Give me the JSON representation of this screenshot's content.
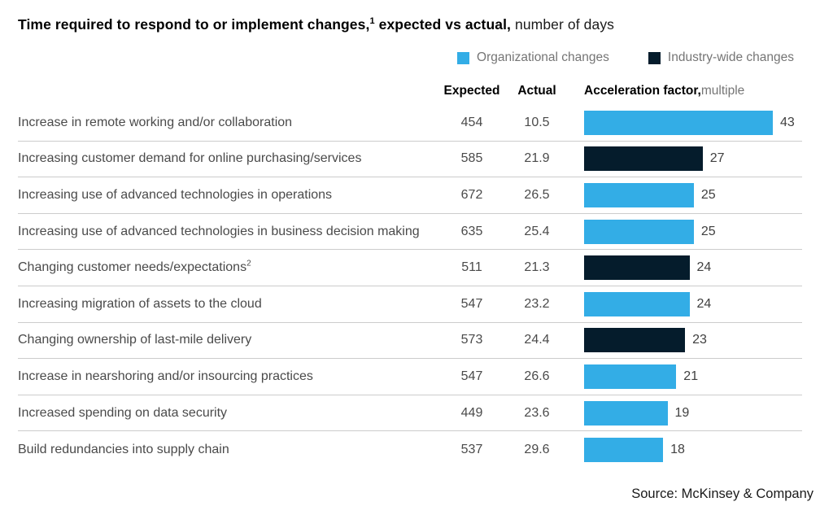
{
  "title": {
    "bold_main": "Time required to respond to or implement changes,",
    "superscript": "1",
    "bold_tail": " expected vs actual,",
    "normal_tail": " number of days"
  },
  "legend": [
    {
      "key": "organizational",
      "label": "Organizational changes",
      "color": "#33ADE6"
    },
    {
      "key": "industry",
      "label": "Industry-wide changes",
      "color": "#051C2C"
    }
  ],
  "columns": {
    "expected": "Expected",
    "actual": "Actual",
    "acceleration_bold": "Acceleration factor,",
    "acceleration_unit": " multiple"
  },
  "colors": {
    "organizational": "#33ADE6",
    "industry": "#051C2C",
    "separator": "#cccccc"
  },
  "rows": [
    {
      "label": "Increase in remote working and/or collaboration",
      "sup": "",
      "expected": "454",
      "actual": "10.5",
      "factor": 43,
      "type": "organizational"
    },
    {
      "label": "Increasing customer demand for online purchasing/services",
      "sup": "",
      "expected": "585",
      "actual": "21.9",
      "factor": 27,
      "type": "industry"
    },
    {
      "label": "Increasing use of advanced technologies in operations",
      "sup": "",
      "expected": "672",
      "actual": "26.5",
      "factor": 25,
      "type": "organizational"
    },
    {
      "label": "Increasing use of advanced technologies in business decision making",
      "sup": "",
      "expected": "635",
      "actual": "25.4",
      "factor": 25,
      "type": "organizational"
    },
    {
      "label": "Changing customer needs/expectations",
      "sup": "2",
      "expected": "511",
      "actual": "21.3",
      "factor": 24,
      "type": "industry"
    },
    {
      "label": "Increasing migration of assets to the cloud",
      "sup": "",
      "expected": "547",
      "actual": "23.2",
      "factor": 24,
      "type": "organizational"
    },
    {
      "label": "Changing ownership of last-mile delivery",
      "sup": "",
      "expected": "573",
      "actual": "24.4",
      "factor": 23,
      "type": "industry"
    },
    {
      "label": "Increase in nearshoring and/or insourcing practices",
      "sup": "",
      "expected": "547",
      "actual": "26.6",
      "factor": 21,
      "type": "organizational"
    },
    {
      "label": "Increased spending on data security",
      "sup": "",
      "expected": "449",
      "actual": "23.6",
      "factor": 19,
      "type": "organizational"
    },
    {
      "label": "Build redundancies into supply chain",
      "sup": "",
      "expected": "537",
      "actual": "29.6",
      "factor": 18,
      "type": "organizational"
    }
  ],
  "source": "Source: McKinsey & Company",
  "chart_data": {
    "type": "bar",
    "orientation": "horizontal",
    "title": "Time required to respond to or implement changes, expected vs actual, number of days",
    "categories": [
      "Increase in remote working and/or collaboration",
      "Increasing customer demand for online purchasing/services",
      "Increasing use of advanced technologies in operations",
      "Increasing use of advanced technologies in business decision making",
      "Changing customer needs/expectations",
      "Increasing migration of assets to the cloud",
      "Changing ownership of last-mile delivery",
      "Increase in nearshoring and/or insourcing practices",
      "Increased spending on data security",
      "Build redundancies into supply chain"
    ],
    "series": [
      {
        "name": "Expected (days)",
        "values": [
          454,
          585,
          672,
          635,
          511,
          547,
          573,
          547,
          449,
          537
        ]
      },
      {
        "name": "Actual (days)",
        "values": [
          10.5,
          21.9,
          26.5,
          25.4,
          21.3,
          23.2,
          24.4,
          26.6,
          23.6,
          29.6
        ]
      },
      {
        "name": "Acceleration factor (multiple)",
        "values": [
          43,
          27,
          25,
          25,
          24,
          24,
          23,
          21,
          19,
          18
        ]
      }
    ],
    "bar_series_shown": "Acceleration factor (multiple)",
    "category_group": [
      "organizational",
      "industry",
      "organizational",
      "organizational",
      "industry",
      "organizational",
      "industry",
      "organizational",
      "organizational",
      "organizational"
    ],
    "legend": [
      {
        "label": "Organizational changes",
        "color": "#33ADE6"
      },
      {
        "label": "Industry-wide changes",
        "color": "#051C2C"
      }
    ],
    "legend_position": "top-right",
    "xlim": [
      0,
      43
    ],
    "grid": false,
    "data_labels": true
  }
}
